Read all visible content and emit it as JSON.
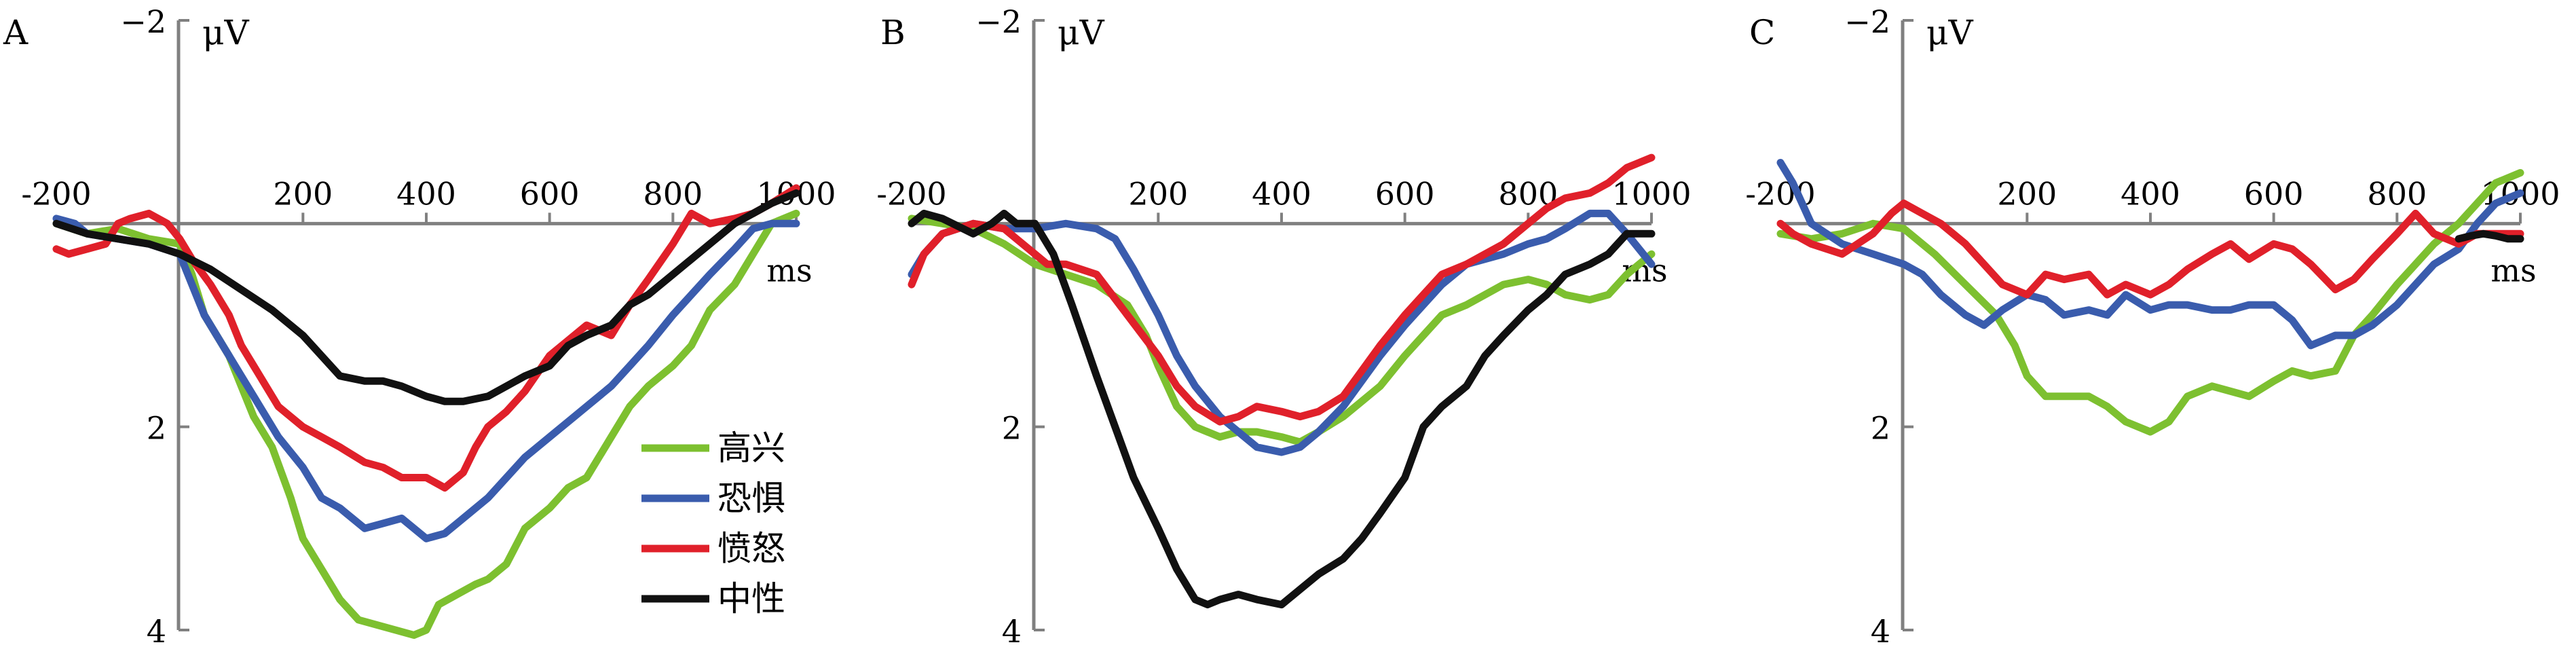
{
  "chart_data": [
    {
      "type": "line",
      "panel_label": "A",
      "ylabel": "μV",
      "xlabel": "ms",
      "xlim": [
        -200,
        1000
      ],
      "ylim": [
        -2,
        4
      ],
      "y_inverted": true,
      "x_ticks": [
        -200,
        200,
        400,
        600,
        800,
        1000
      ],
      "y_ticks": [
        -2,
        2,
        4
      ],
      "legend": {
        "placement": "bottom-right",
        "entries": [
          "高兴",
          "恐惧",
          "愤怒",
          "中性"
        ]
      },
      "series": [
        {
          "name": "高兴",
          "color": "#7dc030",
          "x": [
            -200,
            -150,
            -100,
            -50,
            0,
            20,
            40,
            60,
            80,
            100,
            120,
            150,
            180,
            200,
            230,
            260,
            290,
            320,
            350,
            380,
            400,
            420,
            450,
            480,
            500,
            530,
            560,
            600,
            630,
            660,
            700,
            730,
            760,
            800,
            830,
            860,
            900,
            930,
            960,
            1000
          ],
          "y": [
            0.0,
            0.1,
            0.05,
            0.15,
            0.2,
            0.5,
            0.9,
            1.1,
            1.3,
            1.6,
            1.9,
            2.2,
            2.7,
            3.1,
            3.4,
            3.7,
            3.9,
            3.95,
            4.0,
            4.05,
            4.0,
            3.75,
            3.65,
            3.55,
            3.5,
            3.35,
            3.0,
            2.8,
            2.6,
            2.5,
            2.1,
            1.8,
            1.6,
            1.4,
            1.2,
            0.85,
            0.6,
            0.3,
            0.0,
            -0.1
          ]
        },
        {
          "name": "恐惧",
          "color": "#3a5cad",
          "x": [
            -200,
            -170,
            -150,
            -100,
            -50,
            0,
            20,
            40,
            60,
            80,
            100,
            130,
            160,
            200,
            230,
            260,
            300,
            330,
            360,
            400,
            430,
            460,
            500,
            530,
            560,
            600,
            630,
            660,
            700,
            730,
            760,
            800,
            830,
            860,
            900,
            930,
            960,
            1000
          ],
          "y": [
            -0.05,
            0.0,
            0.1,
            0.15,
            0.2,
            0.3,
            0.6,
            0.9,
            1.1,
            1.3,
            1.5,
            1.8,
            2.1,
            2.4,
            2.7,
            2.8,
            3.0,
            2.95,
            2.9,
            3.1,
            3.05,
            2.9,
            2.7,
            2.5,
            2.3,
            2.1,
            1.95,
            1.8,
            1.6,
            1.4,
            1.2,
            0.9,
            0.7,
            0.5,
            0.25,
            0.05,
            0.0,
            0.0
          ]
        },
        {
          "name": "愤怒",
          "color": "#e0202a",
          "x": [
            -200,
            -180,
            -150,
            -120,
            -100,
            -80,
            -50,
            -20,
            0,
            20,
            50,
            80,
            100,
            130,
            160,
            200,
            230,
            260,
            300,
            330,
            360,
            400,
            430,
            460,
            480,
            500,
            530,
            560,
            600,
            630,
            660,
            700,
            730,
            760,
            800,
            830,
            860,
            900,
            930,
            960,
            1000
          ],
          "y": [
            0.25,
            0.3,
            0.25,
            0.2,
            0.0,
            -0.05,
            -0.1,
            0.0,
            0.15,
            0.35,
            0.6,
            0.9,
            1.2,
            1.5,
            1.8,
            2.0,
            2.1,
            2.2,
            2.35,
            2.4,
            2.5,
            2.5,
            2.6,
            2.45,
            2.2,
            2.0,
            1.85,
            1.65,
            1.3,
            1.15,
            1.0,
            1.1,
            0.8,
            0.55,
            0.2,
            -0.1,
            0.0,
            -0.05,
            -0.1,
            -0.2,
            -0.35
          ]
        },
        {
          "name": "中性",
          "color": "#111111",
          "x": [
            -200,
            -150,
            -100,
            -50,
            0,
            50,
            100,
            150,
            200,
            230,
            260,
            300,
            330,
            360,
            400,
            430,
            460,
            500,
            530,
            560,
            600,
            630,
            660,
            700,
            730,
            760,
            800,
            830,
            860,
            900,
            930,
            960,
            1000
          ],
          "y": [
            0.0,
            0.1,
            0.15,
            0.2,
            0.3,
            0.45,
            0.65,
            0.85,
            1.1,
            1.3,
            1.5,
            1.55,
            1.55,
            1.6,
            1.7,
            1.75,
            1.75,
            1.7,
            1.6,
            1.5,
            1.4,
            1.2,
            1.1,
            1.0,
            0.8,
            0.7,
            0.5,
            0.35,
            0.2,
            0.0,
            -0.1,
            -0.2,
            -0.3
          ]
        }
      ]
    },
    {
      "type": "line",
      "panel_label": "B",
      "ylabel": "μV",
      "xlabel": "ms",
      "xlim": [
        -200,
        1000
      ],
      "ylim": [
        -2,
        4
      ],
      "y_inverted": true,
      "x_ticks": [
        -200,
        200,
        400,
        600,
        800,
        1000
      ],
      "y_ticks": [
        -2,
        2,
        4
      ],
      "series": [
        {
          "name": "高兴",
          "color": "#7dc030",
          "x": [
            -200,
            -150,
            -100,
            -50,
            0,
            50,
            100,
            150,
            180,
            200,
            230,
            260,
            300,
            330,
            360,
            400,
            430,
            460,
            500,
            530,
            560,
            600,
            630,
            660,
            700,
            730,
            760,
            800,
            830,
            860,
            900,
            930,
            960,
            1000
          ],
          "y": [
            -0.05,
            0.0,
            0.05,
            0.2,
            0.4,
            0.5,
            0.6,
            0.8,
            1.1,
            1.4,
            1.8,
            2.0,
            2.1,
            2.05,
            2.05,
            2.1,
            2.15,
            2.05,
            1.9,
            1.75,
            1.6,
            1.3,
            1.1,
            0.9,
            0.8,
            0.7,
            0.6,
            0.55,
            0.6,
            0.7,
            0.75,
            0.7,
            0.5,
            0.3
          ]
        },
        {
          "name": "恐惧",
          "color": "#3a5cad",
          "x": [
            -200,
            -180,
            -150,
            -100,
            -50,
            0,
            50,
            100,
            130,
            160,
            200,
            230,
            260,
            300,
            330,
            360,
            400,
            430,
            460,
            500,
            530,
            560,
            600,
            630,
            660,
            700,
            730,
            760,
            800,
            830,
            860,
            900,
            930,
            960,
            1000
          ],
          "y": [
            0.5,
            0.3,
            0.1,
            0.0,
            0.05,
            0.05,
            0.0,
            0.05,
            0.15,
            0.45,
            0.9,
            1.3,
            1.6,
            1.9,
            2.05,
            2.2,
            2.25,
            2.2,
            2.05,
            1.8,
            1.55,
            1.3,
            1.0,
            0.8,
            0.6,
            0.4,
            0.35,
            0.3,
            0.2,
            0.15,
            0.05,
            -0.1,
            -0.1,
            0.1,
            0.4
          ]
        },
        {
          "name": "愤怒",
          "color": "#e0202a",
          "x": [
            -200,
            -180,
            -150,
            -100,
            -50,
            0,
            20,
            50,
            100,
            150,
            200,
            230,
            260,
            300,
            330,
            360,
            400,
            430,
            460,
            500,
            530,
            560,
            600,
            630,
            660,
            700,
            730,
            760,
            800,
            830,
            860,
            900,
            930,
            960,
            1000
          ],
          "y": [
            0.6,
            0.3,
            0.1,
            0.0,
            0.05,
            0.3,
            0.4,
            0.4,
            0.5,
            0.9,
            1.3,
            1.6,
            1.8,
            1.95,
            1.9,
            1.8,
            1.85,
            1.9,
            1.85,
            1.7,
            1.45,
            1.2,
            0.9,
            0.7,
            0.5,
            0.4,
            0.3,
            0.2,
            0.0,
            -0.15,
            -0.25,
            -0.3,
            -0.4,
            -0.55,
            -0.65
          ]
        },
        {
          "name": "中性",
          "color": "#111111",
          "x": [
            -200,
            -180,
            -150,
            -100,
            -70,
            -50,
            -30,
            0,
            30,
            60,
            100,
            130,
            160,
            200,
            230,
            260,
            280,
            300,
            330,
            360,
            400,
            430,
            460,
            500,
            530,
            560,
            600,
            630,
            660,
            700,
            730,
            760,
            800,
            830,
            860,
            900,
            930,
            960,
            1000
          ],
          "y": [
            0.0,
            -0.1,
            -0.05,
            0.1,
            0.0,
            -0.1,
            0.0,
            0.0,
            0.3,
            0.8,
            1.5,
            2.0,
            2.5,
            3.0,
            3.4,
            3.7,
            3.75,
            3.7,
            3.65,
            3.7,
            3.75,
            3.6,
            3.45,
            3.3,
            3.1,
            2.85,
            2.5,
            2.0,
            1.8,
            1.6,
            1.3,
            1.1,
            0.85,
            0.7,
            0.5,
            0.4,
            0.3,
            0.1,
            0.1
          ]
        }
      ]
    },
    {
      "type": "line",
      "panel_label": "C",
      "ylabel": "μV",
      "xlabel": "ms",
      "xlim": [
        -200,
        1000
      ],
      "ylim": [
        -2,
        4
      ],
      "y_inverted": true,
      "x_ticks": [
        -200,
        200,
        400,
        600,
        800,
        1000
      ],
      "y_ticks": [
        -2,
        2,
        4
      ],
      "series": [
        {
          "name": "高兴",
          "color": "#7dc030",
          "x": [
            -200,
            -150,
            -100,
            -50,
            0,
            50,
            100,
            150,
            180,
            200,
            230,
            260,
            300,
            330,
            360,
            400,
            430,
            460,
            500,
            530,
            560,
            600,
            630,
            660,
            700,
            730,
            760,
            800,
            830,
            860,
            900,
            930,
            960,
            1000
          ],
          "y": [
            0.1,
            0.15,
            0.1,
            0.0,
            0.05,
            0.3,
            0.6,
            0.9,
            1.2,
            1.5,
            1.7,
            1.7,
            1.7,
            1.8,
            1.95,
            2.05,
            1.95,
            1.7,
            1.6,
            1.65,
            1.7,
            1.55,
            1.45,
            1.5,
            1.45,
            1.1,
            0.9,
            0.6,
            0.4,
            0.2,
            0.0,
            -0.2,
            -0.4,
            -0.5
          ]
        },
        {
          "name": "恐惧",
          "color": "#3a5cad",
          "x": [
            -200,
            -180,
            -150,
            -100,
            -50,
            0,
            30,
            60,
            100,
            130,
            160,
            200,
            230,
            260,
            300,
            330,
            360,
            400,
            430,
            460,
            500,
            530,
            560,
            600,
            630,
            660,
            700,
            730,
            760,
            800,
            830,
            860,
            900,
            930,
            960,
            1000
          ],
          "y": [
            -0.6,
            -0.4,
            0.0,
            0.2,
            0.3,
            0.4,
            0.5,
            0.7,
            0.9,
            1.0,
            0.85,
            0.7,
            0.75,
            0.9,
            0.85,
            0.9,
            0.7,
            0.85,
            0.8,
            0.8,
            0.85,
            0.85,
            0.8,
            0.8,
            0.95,
            1.2,
            1.1,
            1.1,
            1.0,
            0.8,
            0.6,
            0.4,
            0.25,
            0.0,
            -0.2,
            -0.3
          ]
        },
        {
          "name": "愤怒",
          "color": "#e0202a",
          "x": [
            -200,
            -180,
            -150,
            -100,
            -50,
            -20,
            0,
            30,
            60,
            100,
            130,
            160,
            200,
            230,
            260,
            300,
            330,
            360,
            400,
            430,
            460,
            500,
            530,
            560,
            600,
            630,
            660,
            700,
            730,
            760,
            800,
            830,
            860,
            900,
            930,
            960,
            1000
          ],
          "y": [
            0.0,
            0.1,
            0.2,
            0.3,
            0.1,
            -0.1,
            -0.2,
            -0.1,
            0.0,
            0.2,
            0.4,
            0.6,
            0.7,
            0.5,
            0.55,
            0.5,
            0.7,
            0.6,
            0.7,
            0.6,
            0.45,
            0.3,
            0.2,
            0.35,
            0.2,
            0.25,
            0.4,
            0.65,
            0.55,
            0.35,
            0.1,
            -0.1,
            0.1,
            0.2,
            0.1,
            0.1,
            0.1
          ]
        },
        {
          "name": "中性",
          "color": "#111111",
          "x": [
            900,
            920,
            940,
            960,
            980,
            1000
          ],
          "y": [
            0.15,
            0.12,
            0.1,
            0.12,
            0.15,
            0.15
          ]
        }
      ]
    }
  ]
}
